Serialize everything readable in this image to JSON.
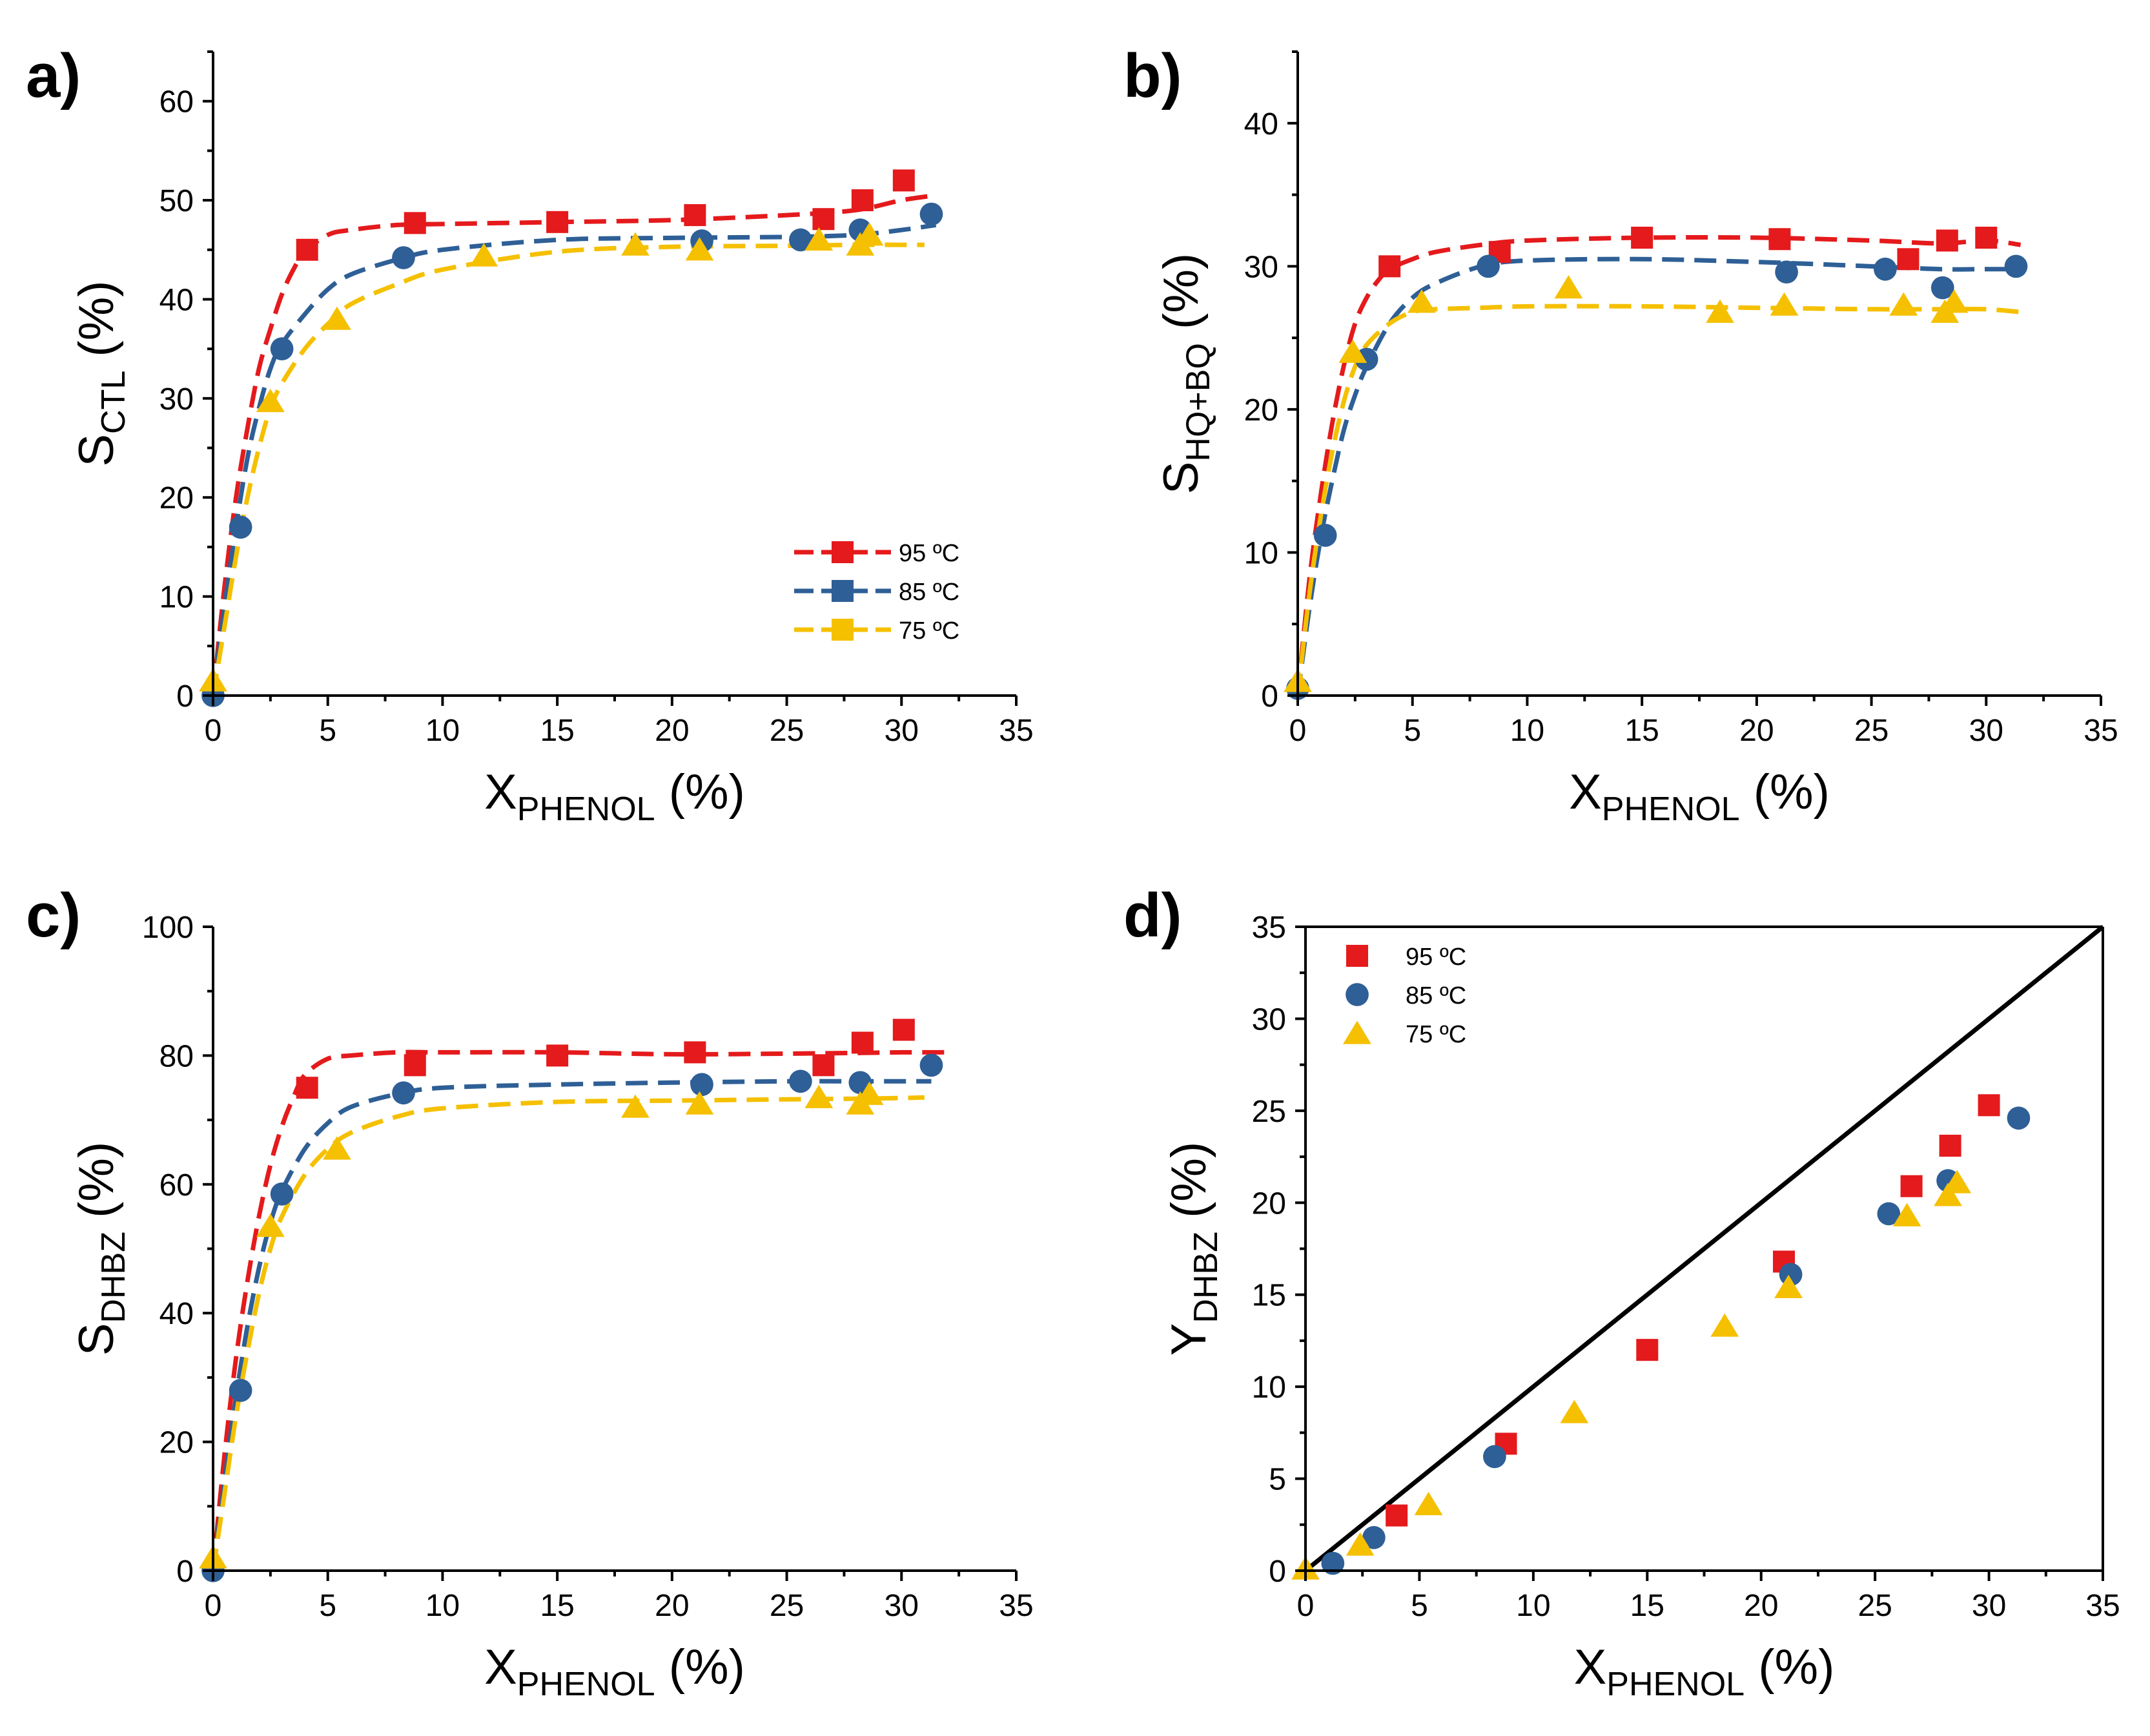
{
  "colors": {
    "95": "#e41a1c",
    "85": "#2e5f96",
    "75": "#f5c000",
    "ideal": "#000000"
  },
  "chart_data": [
    {
      "panel": "a)",
      "type": "scatter",
      "xlabel_main": "X",
      "xlabel_sub": "PHENOL",
      "xlabel_unit": " (%)",
      "ylabel_main": "S",
      "ylabel_sub": "CTL",
      "ylabel_unit": " (%)",
      "xlim": [
        0,
        35
      ],
      "ylim": [
        0,
        65
      ],
      "xticks": [
        0,
        5,
        10,
        15,
        20,
        25,
        30,
        35
      ],
      "yticks": [
        0,
        10,
        20,
        30,
        40,
        50,
        60
      ],
      "legend": {
        "position": "lower-right",
        "style": "line-square"
      },
      "series": [
        {
          "name": "95 ºC",
          "color_key": "95",
          "marker": "square",
          "x": [
            4.1,
            8.8,
            15,
            21,
            26.6,
            28.3,
            30.1
          ],
          "y": [
            45,
            47.7,
            47.8,
            48.5,
            48.1,
            50,
            52
          ],
          "fit_x": [
            0,
            0.5,
            1,
            1.5,
            2,
            2.5,
            3,
            3.5,
            4,
            5,
            6,
            8,
            10,
            15,
            20,
            25,
            28,
            30,
            31.5
          ],
          "fit_y": [
            0,
            11,
            20,
            27,
            33,
            37,
            40.5,
            43,
            44.8,
            46.5,
            47,
            47.5,
            47.6,
            47.8,
            48,
            48.5,
            49,
            50,
            50.5
          ]
        },
        {
          "name": "85 ºC",
          "color_key": "85",
          "marker": "circle",
          "x": [
            0,
            1.2,
            3,
            8.3,
            21.3,
            25.6,
            28.2,
            31.3
          ],
          "y": [
            0,
            17,
            35,
            44.2,
            45.9,
            46,
            47,
            48.6
          ],
          "fit_x": [
            0,
            0.5,
            1,
            1.5,
            2,
            2.5,
            3,
            4,
            5,
            6,
            8,
            10,
            15,
            20,
            25,
            28,
            30,
            31.5
          ],
          "fit_y": [
            0,
            9,
            17,
            24,
            29,
            33,
            35.5,
            38.5,
            41,
            42.5,
            44,
            45,
            46,
            46.2,
            46.3,
            46.5,
            47,
            47.5
          ]
        },
        {
          "name": "75 ºC",
          "color_key": "75",
          "marker": "triangle",
          "x": [
            0,
            2.5,
            5.4,
            11.8,
            18.4,
            21.2,
            26.4,
            28.2,
            28.6
          ],
          "y": [
            1.5,
            29.7,
            38,
            44.4,
            45.5,
            45,
            46,
            45.5,
            46.5
          ],
          "fit_x": [
            0,
            0.5,
            1,
            1.5,
            2,
            2.5,
            3,
            4,
            5,
            6,
            8,
            10,
            15,
            20,
            25,
            28,
            30,
            31
          ],
          "fit_y": [
            0,
            7,
            14,
            20,
            25,
            29,
            31.5,
            35,
            37.5,
            39.5,
            41.5,
            43,
            44.8,
            45.3,
            45.4,
            45.5,
            45.5,
            45.5
          ]
        }
      ]
    },
    {
      "panel": "b)",
      "type": "scatter",
      "xlabel_main": "X",
      "xlabel_sub": "PHENOL",
      "xlabel_unit": " (%)",
      "ylabel_main": "S",
      "ylabel_sub": "HQ+BQ",
      "ylabel_unit": " (%)",
      "xlim": [
        0,
        35
      ],
      "ylim": [
        0,
        45
      ],
      "xticks": [
        0,
        5,
        10,
        15,
        20,
        25,
        30,
        35
      ],
      "yticks": [
        0,
        10,
        20,
        30,
        40
      ],
      "legend": null,
      "series": [
        {
          "name": "95 ºC",
          "color_key": "95",
          "marker": "square",
          "x": [
            4,
            8.8,
            15,
            21,
            26.6,
            28.3,
            30
          ],
          "y": [
            30,
            31,
            32,
            31.9,
            30.5,
            31.8,
            32
          ],
          "fit_x": [
            0,
            0.5,
            1,
            1.5,
            2,
            2.5,
            3,
            3.5,
            4,
            5,
            6,
            8,
            10,
            15,
            20,
            25,
            28,
            30,
            31.5
          ],
          "fit_y": [
            0,
            8,
            14,
            19,
            23,
            26,
            27.8,
            29,
            29.8,
            30.5,
            31,
            31.5,
            31.8,
            32,
            32,
            31.8,
            31.6,
            31.8,
            31.5
          ]
        },
        {
          "name": "85 ºC",
          "color_key": "85",
          "marker": "circle",
          "x": [
            0,
            1.2,
            3,
            8.3,
            21.3,
            25.6,
            28.1,
            31.3
          ],
          "y": [
            0.5,
            11.2,
            23.5,
            30,
            29.6,
            29.8,
            28.5,
            30
          ],
          "fit_x": [
            0,
            0.5,
            1,
            1.5,
            2,
            2.5,
            3,
            4,
            5,
            6,
            8,
            10,
            15,
            20,
            25,
            28,
            30,
            31.5
          ],
          "fit_y": [
            0,
            6,
            11,
            15,
            18.5,
            21,
            23,
            26,
            27.8,
            28.8,
            30,
            30.4,
            30.5,
            30.3,
            30,
            29.8,
            29.8,
            29.8
          ]
        },
        {
          "name": "75 ºC",
          "color_key": "75",
          "marker": "triangle",
          "x": [
            0,
            2.4,
            5.4,
            11.8,
            18.4,
            21.2,
            26.4,
            28.2,
            28.6
          ],
          "y": [
            1,
            24,
            27.5,
            28.5,
            26.8,
            27.3,
            27.3,
            26.8,
            27.5
          ],
          "fit_x": [
            0,
            0.5,
            1,
            1.5,
            2,
            2.5,
            3,
            4,
            5,
            6,
            8,
            10,
            15,
            20,
            25,
            28,
            30,
            31.5
          ],
          "fit_y": [
            0,
            7,
            12.5,
            17,
            20.5,
            23,
            24.5,
            26,
            26.8,
            27,
            27.1,
            27.2,
            27.2,
            27.1,
            27.0,
            27.0,
            27.0,
            26.8
          ]
        }
      ]
    },
    {
      "panel": "c)",
      "type": "scatter",
      "xlabel_main": "X",
      "xlabel_sub": "PHENOL",
      "xlabel_unit": " (%)",
      "ylabel_main": "S",
      "ylabel_sub": "DHBZ",
      "ylabel_unit": " (%)",
      "xlim": [
        0,
        35
      ],
      "ylim": [
        0,
        100
      ],
      "xticks": [
        0,
        5,
        10,
        15,
        20,
        25,
        30,
        35
      ],
      "yticks": [
        0,
        20,
        40,
        60,
        80,
        100
      ],
      "legend": null,
      "series": [
        {
          "name": "95 ºC",
          "color_key": "95",
          "marker": "square",
          "x": [
            4.1,
            8.8,
            15,
            21,
            26.6,
            28.3,
            30.1
          ],
          "y": [
            75,
            78.5,
            80,
            80.5,
            78.5,
            82,
            84
          ],
          "fit_x": [
            0,
            0.5,
            1,
            1.5,
            2,
            2.5,
            3,
            3.5,
            4,
            5,
            6,
            8,
            10,
            15,
            20,
            25,
            28,
            30,
            32
          ],
          "fit_y": [
            0,
            18,
            33,
            45,
            55,
            63,
            69,
            73.5,
            77,
            79.5,
            80,
            80.5,
            80.5,
            80.5,
            80.2,
            80.3,
            80.4,
            80.5,
            80.5
          ]
        },
        {
          "name": "85 ºC",
          "color_key": "85",
          "marker": "circle",
          "x": [
            0,
            1.2,
            3,
            8.3,
            21.3,
            25.6,
            28.2,
            31.3
          ],
          "y": [
            0,
            28,
            58.5,
            74.2,
            75.5,
            76,
            75.8,
            78.5
          ],
          "fit_x": [
            0,
            0.5,
            1,
            1.5,
            2,
            2.5,
            3,
            4,
            5,
            6,
            8,
            10,
            15,
            20,
            25,
            28,
            30,
            31.3
          ],
          "fit_y": [
            0,
            14,
            27,
            38,
            47,
            54,
            59,
            65.5,
            69.5,
            72,
            74,
            75,
            75.5,
            75.8,
            76,
            76,
            76,
            76
          ]
        },
        {
          "name": "75 ºC",
          "color_key": "75",
          "marker": "triangle",
          "x": [
            0,
            2.5,
            5.4,
            18.4,
            21.2,
            26.4,
            28.2,
            28.6
          ],
          "y": [
            2,
            53.5,
            65.5,
            72,
            72.5,
            73.5,
            72.5,
            74
          ],
          "fit_x": [
            0,
            0.5,
            1,
            1.5,
            2,
            2.5,
            3,
            4,
            5,
            6,
            8,
            10,
            15,
            20,
            25,
            28,
            30,
            31
          ],
          "fit_y": [
            0,
            12,
            24,
            34,
            43,
            50,
            55,
            61.5,
            65.5,
            68,
            70.5,
            71.8,
            72.8,
            73,
            73.2,
            73.3,
            73.4,
            73.5
          ]
        }
      ]
    },
    {
      "panel": "d)",
      "type": "scatter",
      "xlabel_main": "X",
      "xlabel_sub": "PHENOL",
      "xlabel_unit": " (%)",
      "ylabel_main": "Y",
      "ylabel_sub": "DHBZ",
      "ylabel_unit": " (%)",
      "xlim": [
        0,
        35
      ],
      "ylim": [
        0,
        35
      ],
      "xticks": [
        0,
        5,
        10,
        15,
        20,
        25,
        30,
        35
      ],
      "yticks": [
        0,
        5,
        10,
        15,
        20,
        25,
        30,
        35
      ],
      "legend": {
        "position": "top-left",
        "style": "marker"
      },
      "ideal_line": {
        "x": [
          0,
          35
        ],
        "y": [
          0,
          35
        ]
      },
      "series": [
        {
          "name": "95 ºC",
          "color_key": "95",
          "marker": "square",
          "x": [
            4,
            8.8,
            15,
            21,
            26.6,
            28.3,
            30
          ],
          "y": [
            3,
            6.9,
            12,
            16.8,
            20.9,
            23.1,
            25.3
          ],
          "fit_x": [],
          "fit_y": []
        },
        {
          "name": "85 ºC",
          "color_key": "85",
          "marker": "circle",
          "x": [
            1.2,
            3,
            8.3,
            21.3,
            25.6,
            28.2,
            31.3
          ],
          "y": [
            0.4,
            1.8,
            6.2,
            16.1,
            19.4,
            21.2,
            24.6
          ],
          "fit_x": [],
          "fit_y": []
        },
        {
          "name": "75 ºC",
          "color_key": "75",
          "marker": "triangle",
          "x": [
            0,
            2.4,
            5.4,
            11.8,
            18.4,
            21.2,
            26.4,
            28.2,
            28.6
          ],
          "y": [
            0.1,
            1.4,
            3.6,
            8.6,
            13.3,
            15.4,
            19.3,
            20.4,
            21.1
          ],
          "fit_x": [],
          "fit_y": []
        }
      ]
    }
  ]
}
